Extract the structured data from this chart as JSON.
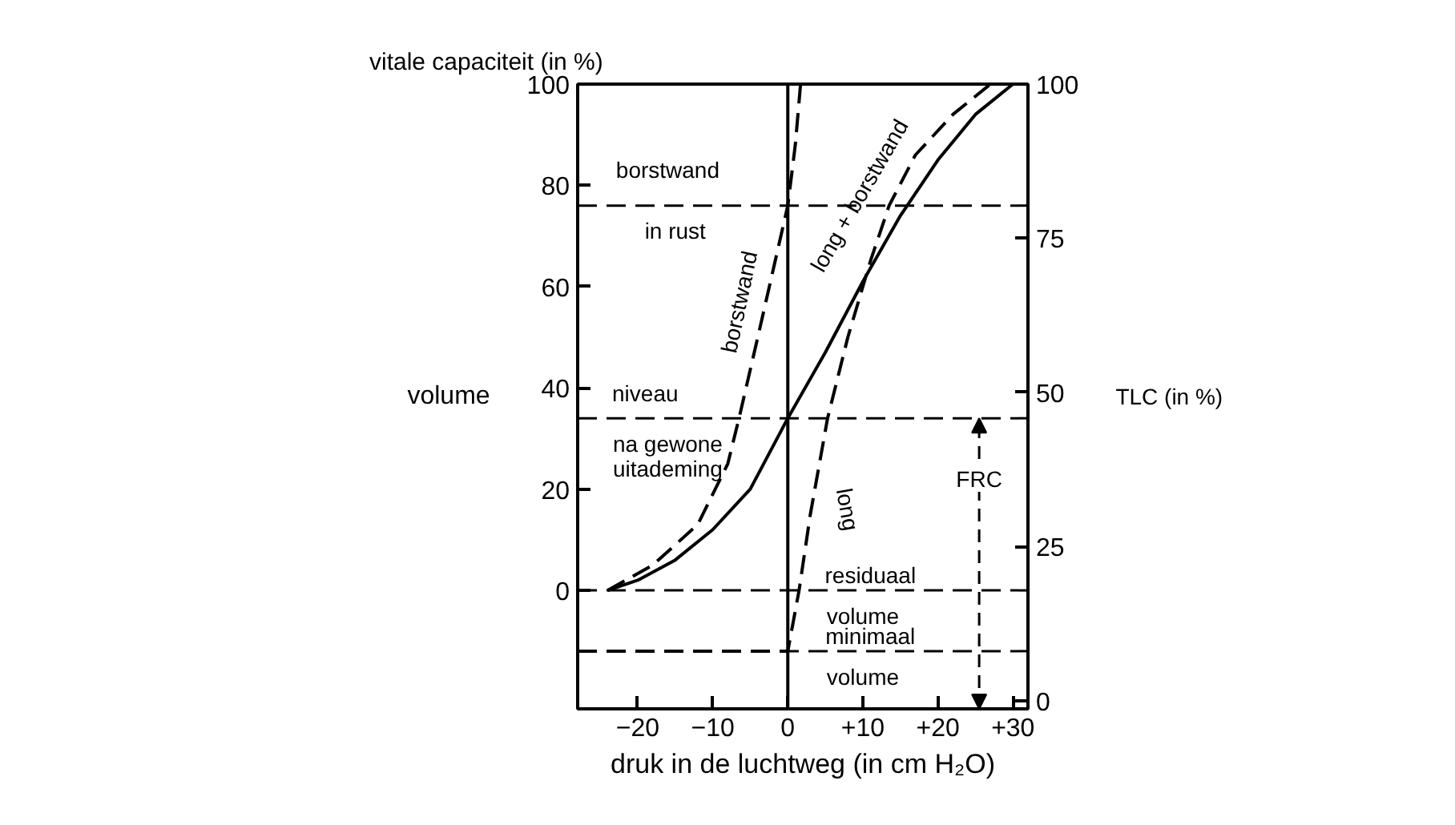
{
  "chart_data": {
    "type": "line",
    "xlabel": "druk in de luchtweg (in cm H₂O)",
    "ylabel": "volume",
    "y2label": "TLC (in %)",
    "xlim": [
      -28,
      32
    ],
    "ylim": [
      -23.4,
      100
    ],
    "y2lim": [
      -1.3,
      100
    ],
    "xticks": [
      {
        "value": -20,
        "label": "−20"
      },
      {
        "value": -10,
        "label": "−10"
      },
      0,
      {
        "value": 10,
        "label": "+10"
      },
      {
        "value": 20,
        "label": "+20"
      },
      {
        "value": 30,
        "label": "+30"
      }
    ],
    "yticks": [
      0,
      20,
      40,
      60,
      80,
      100
    ],
    "y2ticks": [
      0,
      25,
      50,
      75,
      100
    ],
    "grid": false,
    "series": [
      {
        "color": "#000000",
        "line_style": "solid",
        "x": [
          -24,
          -20,
          -15,
          -10,
          -5,
          0,
          5,
          10,
          15,
          20,
          25,
          30
        ],
        "values": [
          0,
          2,
          6,
          12,
          20,
          34,
          47,
          61,
          74,
          85,
          94,
          100
        ]
      },
      {
        "color": "#000000",
        "line_style": "dashed",
        "x": [
          -24,
          -18,
          -12,
          -8,
          -6.5,
          -4,
          -2,
          0,
          1,
          1.7
        ],
        "values": [
          0,
          5,
          13,
          25,
          34,
          50,
          63,
          76,
          88,
          100
        ]
      },
      {
        "color": "#000000",
        "line_style": "dashed",
        "x": [
          -28,
          0,
          0.5,
          1.5,
          3,
          5.3,
          8,
          11,
          13.5,
          17,
          22,
          27
        ],
        "values": [
          -12,
          -12,
          -8,
          0,
          15,
          34,
          50,
          65,
          76,
          86,
          94,
          100
        ]
      }
    ],
    "ref_lines": [
      {
        "axis": "x",
        "value": 0,
        "color": "#000000",
        "line_style": "solid"
      },
      {
        "axis": "y",
        "value": 76,
        "color": "#000000",
        "line_style": "dashed"
      },
      {
        "axis": "y",
        "value": 34,
        "color": "#000000",
        "line_style": "dashed"
      },
      {
        "axis": "y",
        "value": 0,
        "color": "#000000",
        "line_style": "dashed"
      },
      {
        "axis": "y",
        "value": -12,
        "color": "#000000",
        "line_style": "dashed"
      }
    ],
    "annotations": [
      "vitale capaciteit (in %)",
      "borstwand",
      "in rust",
      "niveau",
      "na gewone",
      "uitademing",
      "residuaal",
      "volume",
      "minimaal",
      "volume",
      "FRC",
      "borstwand",
      "long + borstwand",
      "long"
    ]
  }
}
